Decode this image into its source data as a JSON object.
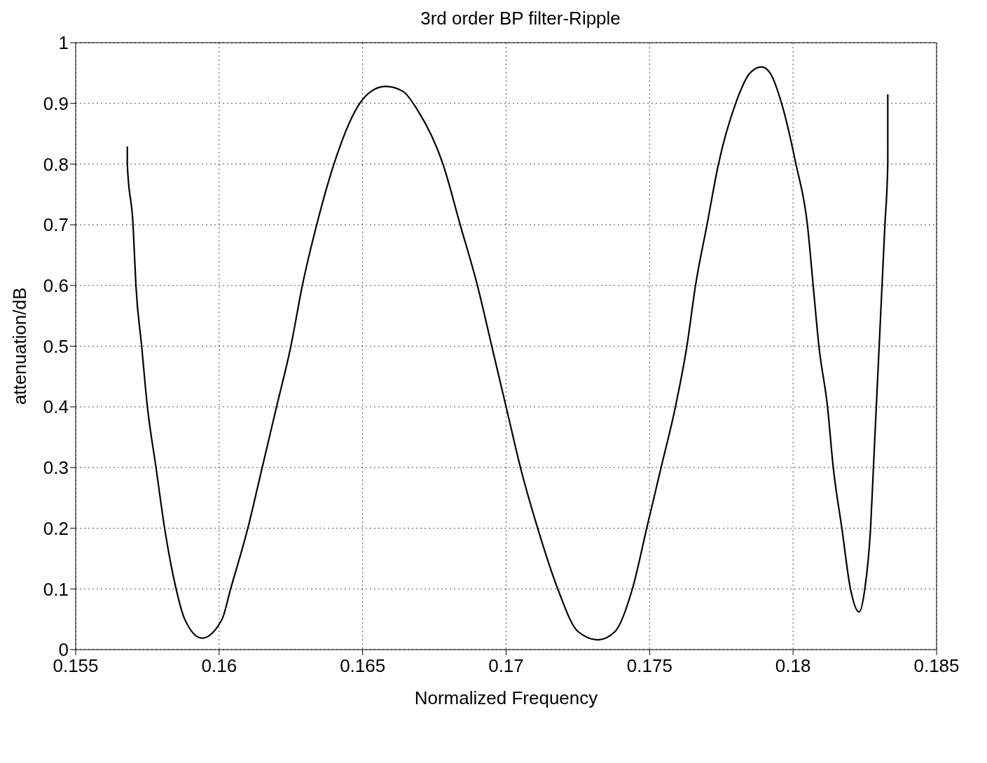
{
  "chart_data": {
    "type": "line",
    "title": "3rd order BP filter-Ripple",
    "xlabel": "Normalized Frequency",
    "ylabel": "attenuation/dB",
    "xlim": [
      0.155,
      0.185
    ],
    "xticks": [
      0.155,
      0.16,
      0.165,
      0.17,
      0.175,
      0.18,
      0.185
    ],
    "ylim": [
      0,
      1
    ],
    "yticks": [
      0,
      0.1,
      0.2,
      0.3,
      0.4,
      0.5,
      0.6,
      0.7,
      0.8,
      0.9,
      1
    ],
    "grid": true,
    "line_style": "solid",
    "series": [
      {
        "color": "#000000",
        "x": [
          0.1568,
          0.1568,
          0.157,
          0.1571,
          0.1573,
          0.1575,
          0.1578,
          0.1581,
          0.1585,
          0.1588,
          0.1594,
          0.1601,
          0.1604,
          0.161,
          0.1615,
          0.162,
          0.1625,
          0.1629,
          0.1634,
          0.164,
          0.1649,
          0.1653,
          0.1658,
          0.1664,
          0.1669,
          0.1678,
          0.1684,
          0.169,
          0.1695,
          0.17,
          0.1705,
          0.1711,
          0.1718,
          0.1725,
          0.1732,
          0.1738,
          0.1744,
          0.1749,
          0.1754,
          0.1759,
          0.1763,
          0.1766,
          0.177,
          0.1774,
          0.178,
          0.1785,
          0.1789,
          0.1792,
          0.1796,
          0.1801,
          0.1805,
          0.1807,
          0.1809,
          0.1812,
          0.1814,
          0.1817,
          0.182,
          0.1823,
          0.1825,
          0.1827,
          0.1828,
          0.1829,
          0.183,
          0.1831,
          0.1832,
          0.1833,
          0.1833
        ],
        "values": [
          0.829,
          0.8,
          0.7,
          0.6,
          0.5,
          0.4,
          0.3,
          0.2,
          0.1,
          0.05,
          0.019,
          0.05,
          0.1,
          0.2,
          0.3,
          0.4,
          0.5,
          0.6,
          0.7,
          0.8,
          0.9,
          0.92,
          0.928,
          0.92,
          0.89,
          0.8,
          0.7,
          0.6,
          0.5,
          0.4,
          0.3,
          0.2,
          0.1,
          0.03,
          0.016,
          0.03,
          0.1,
          0.2,
          0.3,
          0.4,
          0.5,
          0.6,
          0.7,
          0.8,
          0.9,
          0.95,
          0.96,
          0.95,
          0.9,
          0.8,
          0.7,
          0.6,
          0.5,
          0.4,
          0.3,
          0.2,
          0.1,
          0.062,
          0.1,
          0.2,
          0.3,
          0.4,
          0.5,
          0.6,
          0.7,
          0.8,
          0.915
        ]
      }
    ]
  }
}
